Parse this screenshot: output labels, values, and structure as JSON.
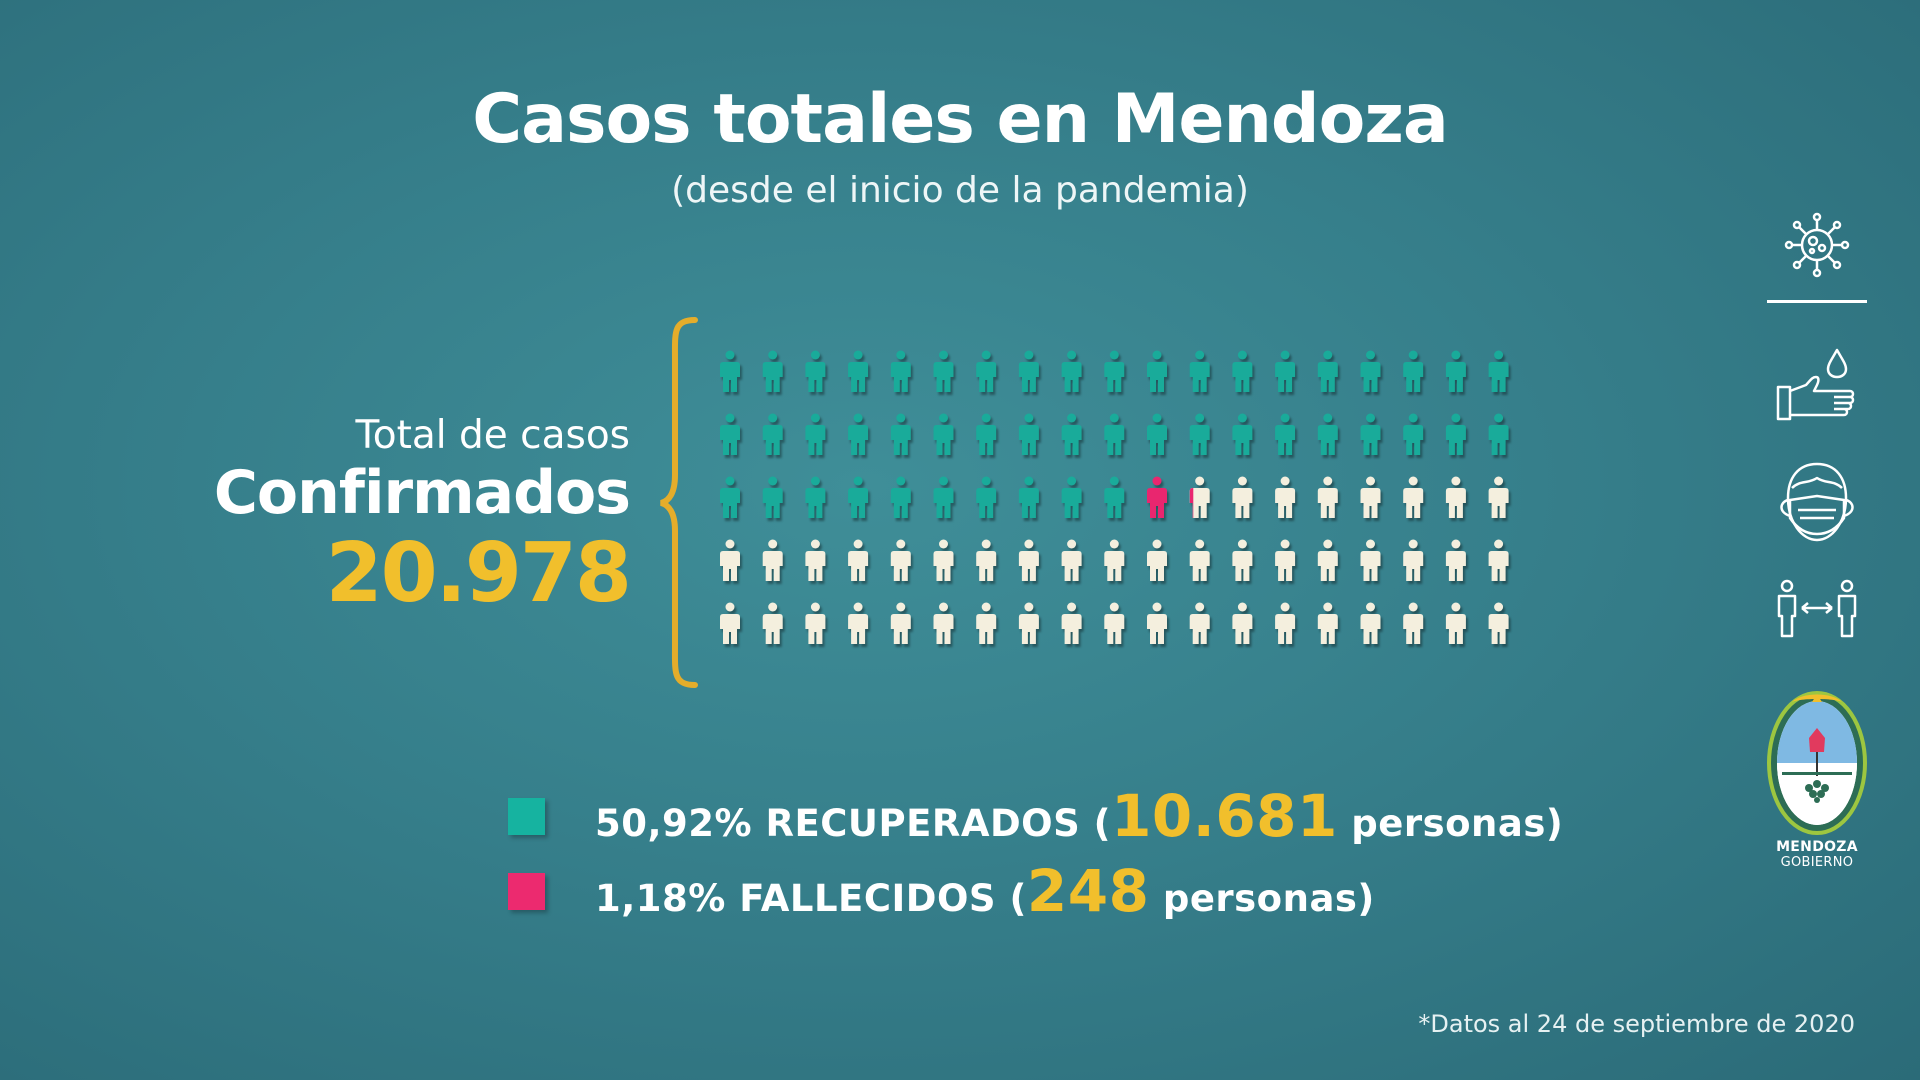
{
  "header": {
    "title": "Casos totales en Mendoza",
    "subtitle": "(desde el inicio de la pandemia)"
  },
  "summary": {
    "label": "Total de casos",
    "label_strong": "Confirmados",
    "total": "20.978"
  },
  "chart_data": {
    "type": "pictogram",
    "rows": 5,
    "columns": 19,
    "total_icons": 95,
    "counts": {
      "recuperados": 48,
      "fallecidos": 1.18,
      "activos": 45.82
    },
    "colors": {
      "recuperados": "#19ab9a",
      "fallecidos": "#e9266f",
      "activos": "#f4efde"
    },
    "legend": [
      {
        "key": "recuperados",
        "percent": "50,92%",
        "label": "RECUPERADOS",
        "value": "10.681",
        "unit": "personas",
        "color": "#16b3a0"
      },
      {
        "key": "fallecidos",
        "percent": "1,18%",
        "label": "FALLECIDOS",
        "value": "248",
        "unit": "personas",
        "color": "#ec2a6f"
      }
    ]
  },
  "legend_text": {
    "recuperados_pre": "50,92% RECUPERADOS (",
    "recuperados_value": "10.681",
    "recuperados_post": " personas)",
    "fallecidos_pre": "1,18% FALLECIDOS (",
    "fallecidos_value": "248",
    "fallecidos_post": " personas)"
  },
  "footnote": "*Datos al 24 de septiembre de 2020",
  "sidebar_icons": [
    "virus-icon",
    "handwash-icon",
    "face-mask-icon",
    "social-distance-icon"
  ],
  "logo": {
    "line1": "MENDOZA",
    "line2": "GOBIERNO"
  },
  "colors": {
    "accent": "#f1bf2c",
    "background": "#3a8590"
  }
}
